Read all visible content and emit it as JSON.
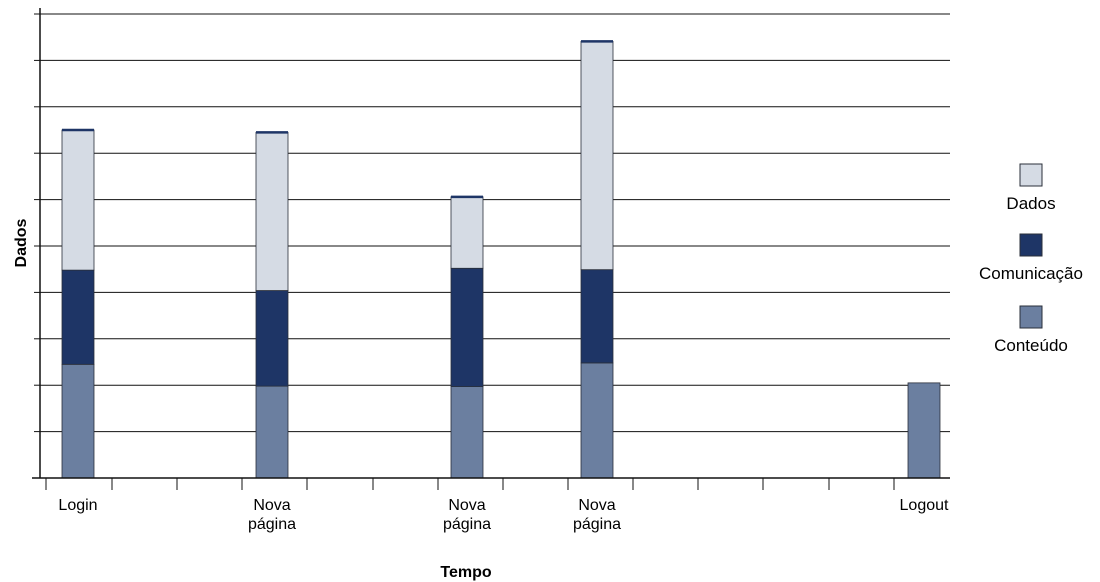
{
  "chart_data": {
    "type": "bar",
    "stacked": true,
    "xlabel": "Tempo",
    "ylabel": "Dados",
    "ylim": [
      0,
      10
    ],
    "grid": true,
    "legend_position": "right",
    "x_ticks": [
      {
        "label": [
          "Login"
        ]
      },
      {
        "label": [
          "Nova",
          "página"
        ]
      },
      {
        "label": [
          "Nova",
          "página"
        ]
      },
      {
        "label": [
          "Nova",
          "página"
        ]
      },
      {
        "label": [
          "Logout"
        ]
      }
    ],
    "series": [
      {
        "name": "Conteúdo",
        "color": "#6b7fa0",
        "values": [
          2.45,
          1.98,
          1.97,
          2.48,
          2.05
        ]
      },
      {
        "name": "Comunicação",
        "color": "#1e3566",
        "values": [
          2.03,
          2.06,
          2.55,
          2.01,
          0
        ]
      },
      {
        "name": "Dados",
        "color": "#d5dbe4",
        "values": [
          3.02,
          3.41,
          1.54,
          4.92,
          0
        ]
      }
    ],
    "legend": [
      {
        "name": "Dados",
        "color": "#d5dbe4"
      },
      {
        "name": "Comunicação",
        "color": "#1e3566"
      },
      {
        "name": "Conteúdo",
        "color": "#6b7fa0"
      }
    ]
  }
}
